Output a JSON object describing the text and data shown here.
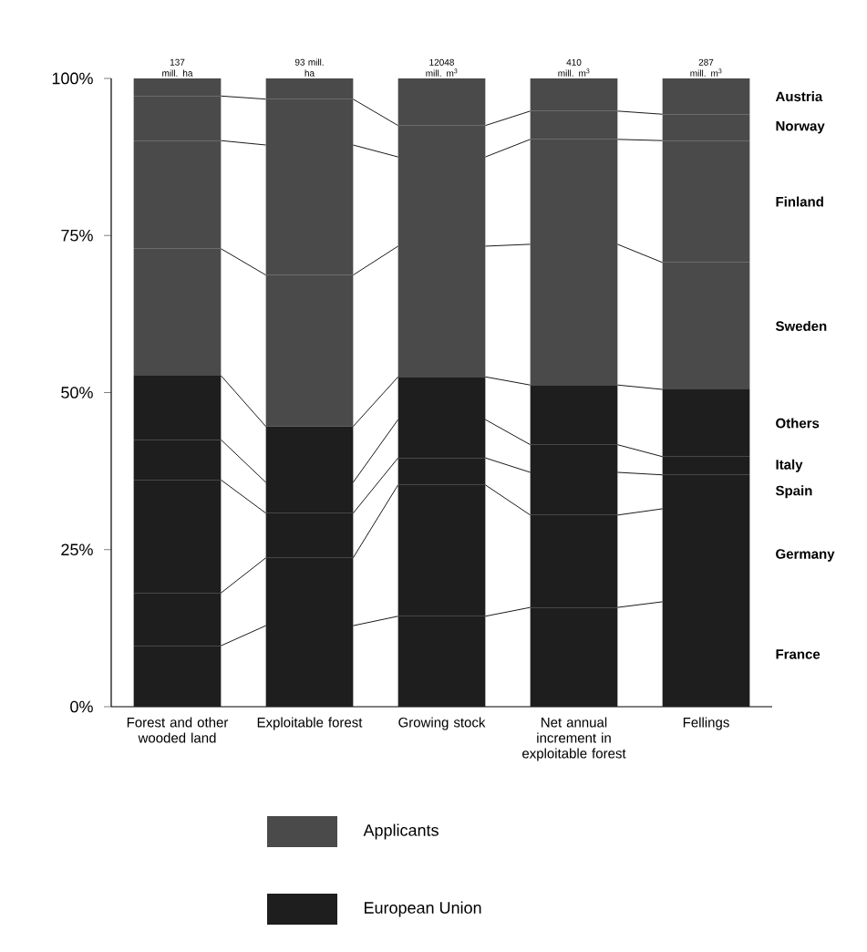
{
  "chart_data": {
    "type": "bar",
    "stacked": true,
    "categories": [
      "Forest and other wooded land",
      "Exploitable forest",
      "Growing stock",
      "Net annual increment in exploitable forest",
      "Fellings"
    ],
    "series": [
      {
        "name": "France",
        "color": "#1e1e1e",
        "values": [
          9.7,
          12.9,
          14.4,
          15.8,
          16.7
        ]
      },
      {
        "name": "Germany",
        "color": "#1e1e1e",
        "values": [
          8.4,
          10.8,
          20.9,
          14.7,
          14.8
        ]
      },
      {
        "name": "Spain",
        "color": "#1e1e1e",
        "values": [
          18.0,
          7.1,
          4.3,
          6.8,
          5.4
        ]
      },
      {
        "name": "Italy",
        "color": "#1e1e1e",
        "values": [
          6.4,
          4.9,
          6.1,
          4.4,
          2.9
        ]
      },
      {
        "name": "Others",
        "color": "#1e1e1e",
        "values": [
          10.2,
          8.9,
          6.8,
          9.5,
          10.7
        ]
      },
      {
        "name": "Sweden",
        "color": "#4a4a4a",
        "values": [
          20.2,
          24.1,
          20.8,
          22.4,
          20.2
        ]
      },
      {
        "name": "Finland",
        "color": "#4a4a4a",
        "values": [
          17.2,
          20.7,
          14.2,
          16.7,
          19.4
        ]
      },
      {
        "name": "Norway",
        "color": "#4a4a4a",
        "values": [
          7.1,
          7.3,
          5.0,
          4.5,
          4.2
        ]
      },
      {
        "name": "Austria",
        "color": "#4a4a4a",
        "values": [
          2.8,
          3.3,
          7.5,
          5.2,
          5.7
        ]
      }
    ],
    "ylim": [
      0,
      100
    ],
    "yticks": [
      {
        "value": 0,
        "label": "0%"
      },
      {
        "value": 25,
        "label": "25%"
      },
      {
        "value": 50,
        "label": "50%"
      },
      {
        "value": 75,
        "label": "75%"
      },
      {
        "value": 100,
        "label": "100%"
      }
    ],
    "annotations": [
      {
        "text": "137 mill. ha",
        "x": "Forest and other wooded land",
        "y": 100
      },
      {
        "text": "93 mill. ha",
        "x": "Exploitable forest",
        "y": 100
      },
      {
        "text": "12048 mill. m$^{3}$",
        "x": "Growing stock",
        "y": 100
      },
      {
        "text": "410 mill. m$^{3}$",
        "x": "Net annual increment in exploitable forest",
        "y": 100
      },
      {
        "text": "287 mill. m$^{3}$",
        "x": "Fellings",
        "y": 100
      },
      "Applicants",
      "European Union"
    ]
  }
}
